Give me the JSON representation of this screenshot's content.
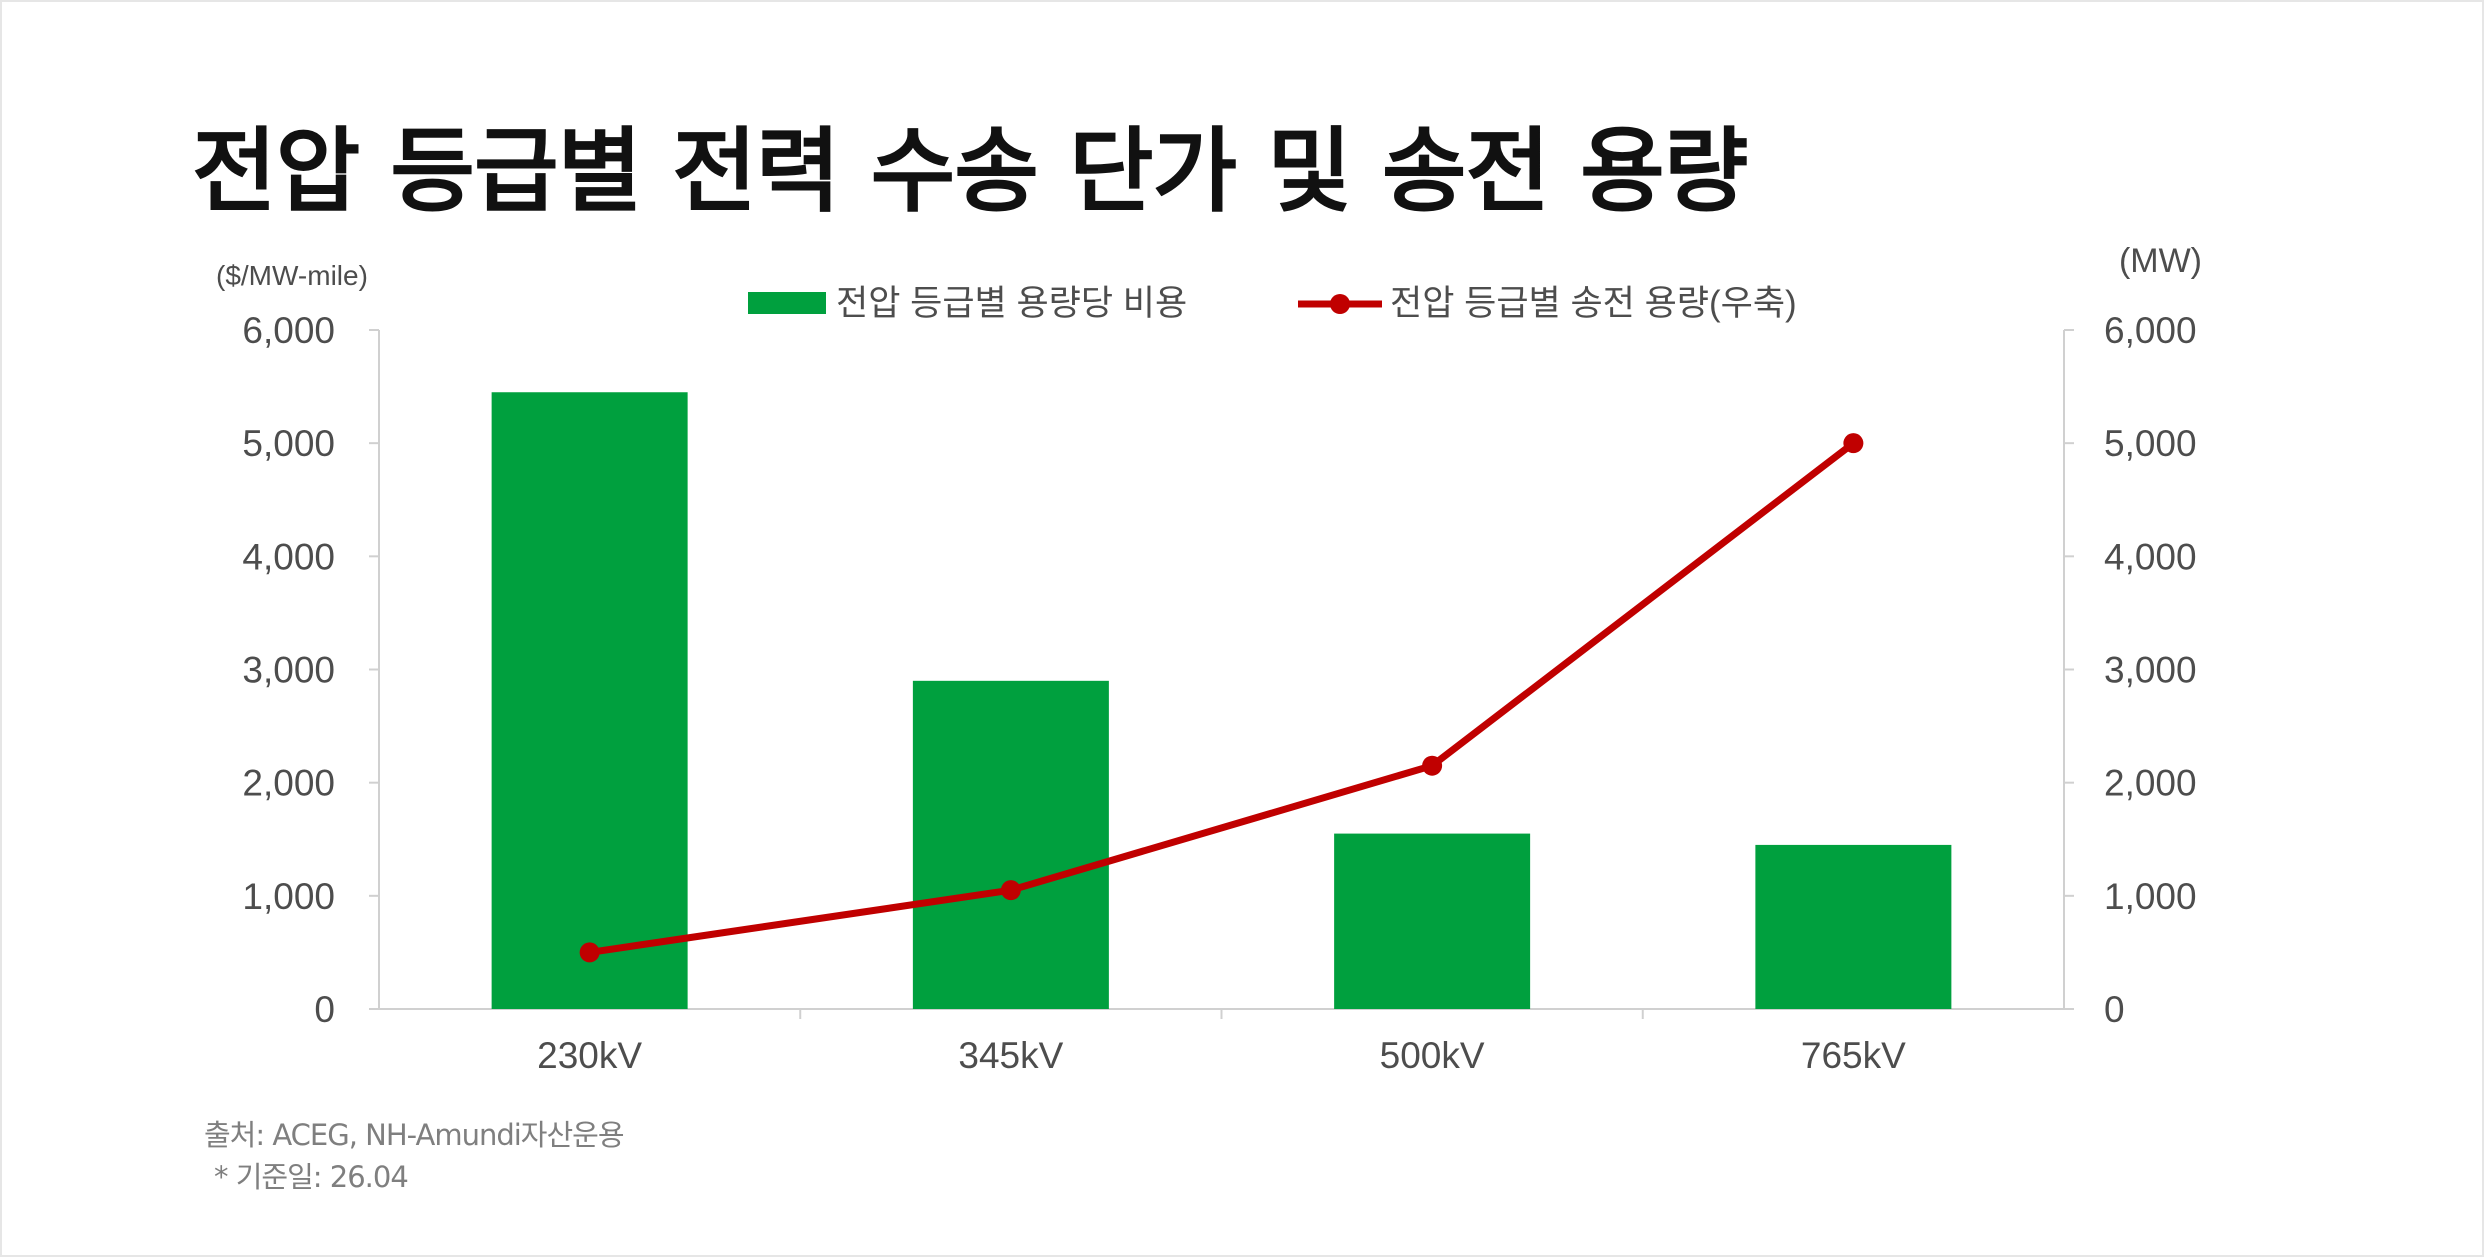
{
  "title": "전압 등급별 전력 수송 단가 및 송전 용량",
  "source": {
    "line1": "출처: ACEG, NH-Amundi자산운용",
    "line2": "* 기준일: 26.04"
  },
  "colors": {
    "bar": "#00a03e",
    "line": "#c00000",
    "axis": "#d0d0d0",
    "text": "#4d4d4d"
  },
  "chart_data": {
    "type": "bar",
    "categories": [
      "230kV",
      "345kV",
      "500kV",
      "765kV"
    ],
    "series": [
      {
        "name": "전압 등급별 용량당 비용",
        "type": "bar",
        "axis": "left",
        "values": [
          5450,
          2900,
          1550,
          1450
        ]
      },
      {
        "name": "전압 등급별 송전 용량(우축)",
        "type": "line",
        "axis": "right",
        "values": [
          500,
          1050,
          2150,
          5000
        ]
      }
    ],
    "ylabel": "($/MW-mile)",
    "y2label": "(MW)",
    "ylim": [
      0,
      6000
    ],
    "y2lim": [
      0,
      6000
    ],
    "yticks": [
      "6,000",
      "5,000",
      "4,000",
      "3,000",
      "2,000",
      "1,000",
      "0"
    ],
    "y2ticks": [
      "6,000",
      "5,000",
      "4,000",
      "3,000",
      "2,000",
      "1,000",
      "0"
    ],
    "legend_position": "top-center",
    "grid": false
  }
}
